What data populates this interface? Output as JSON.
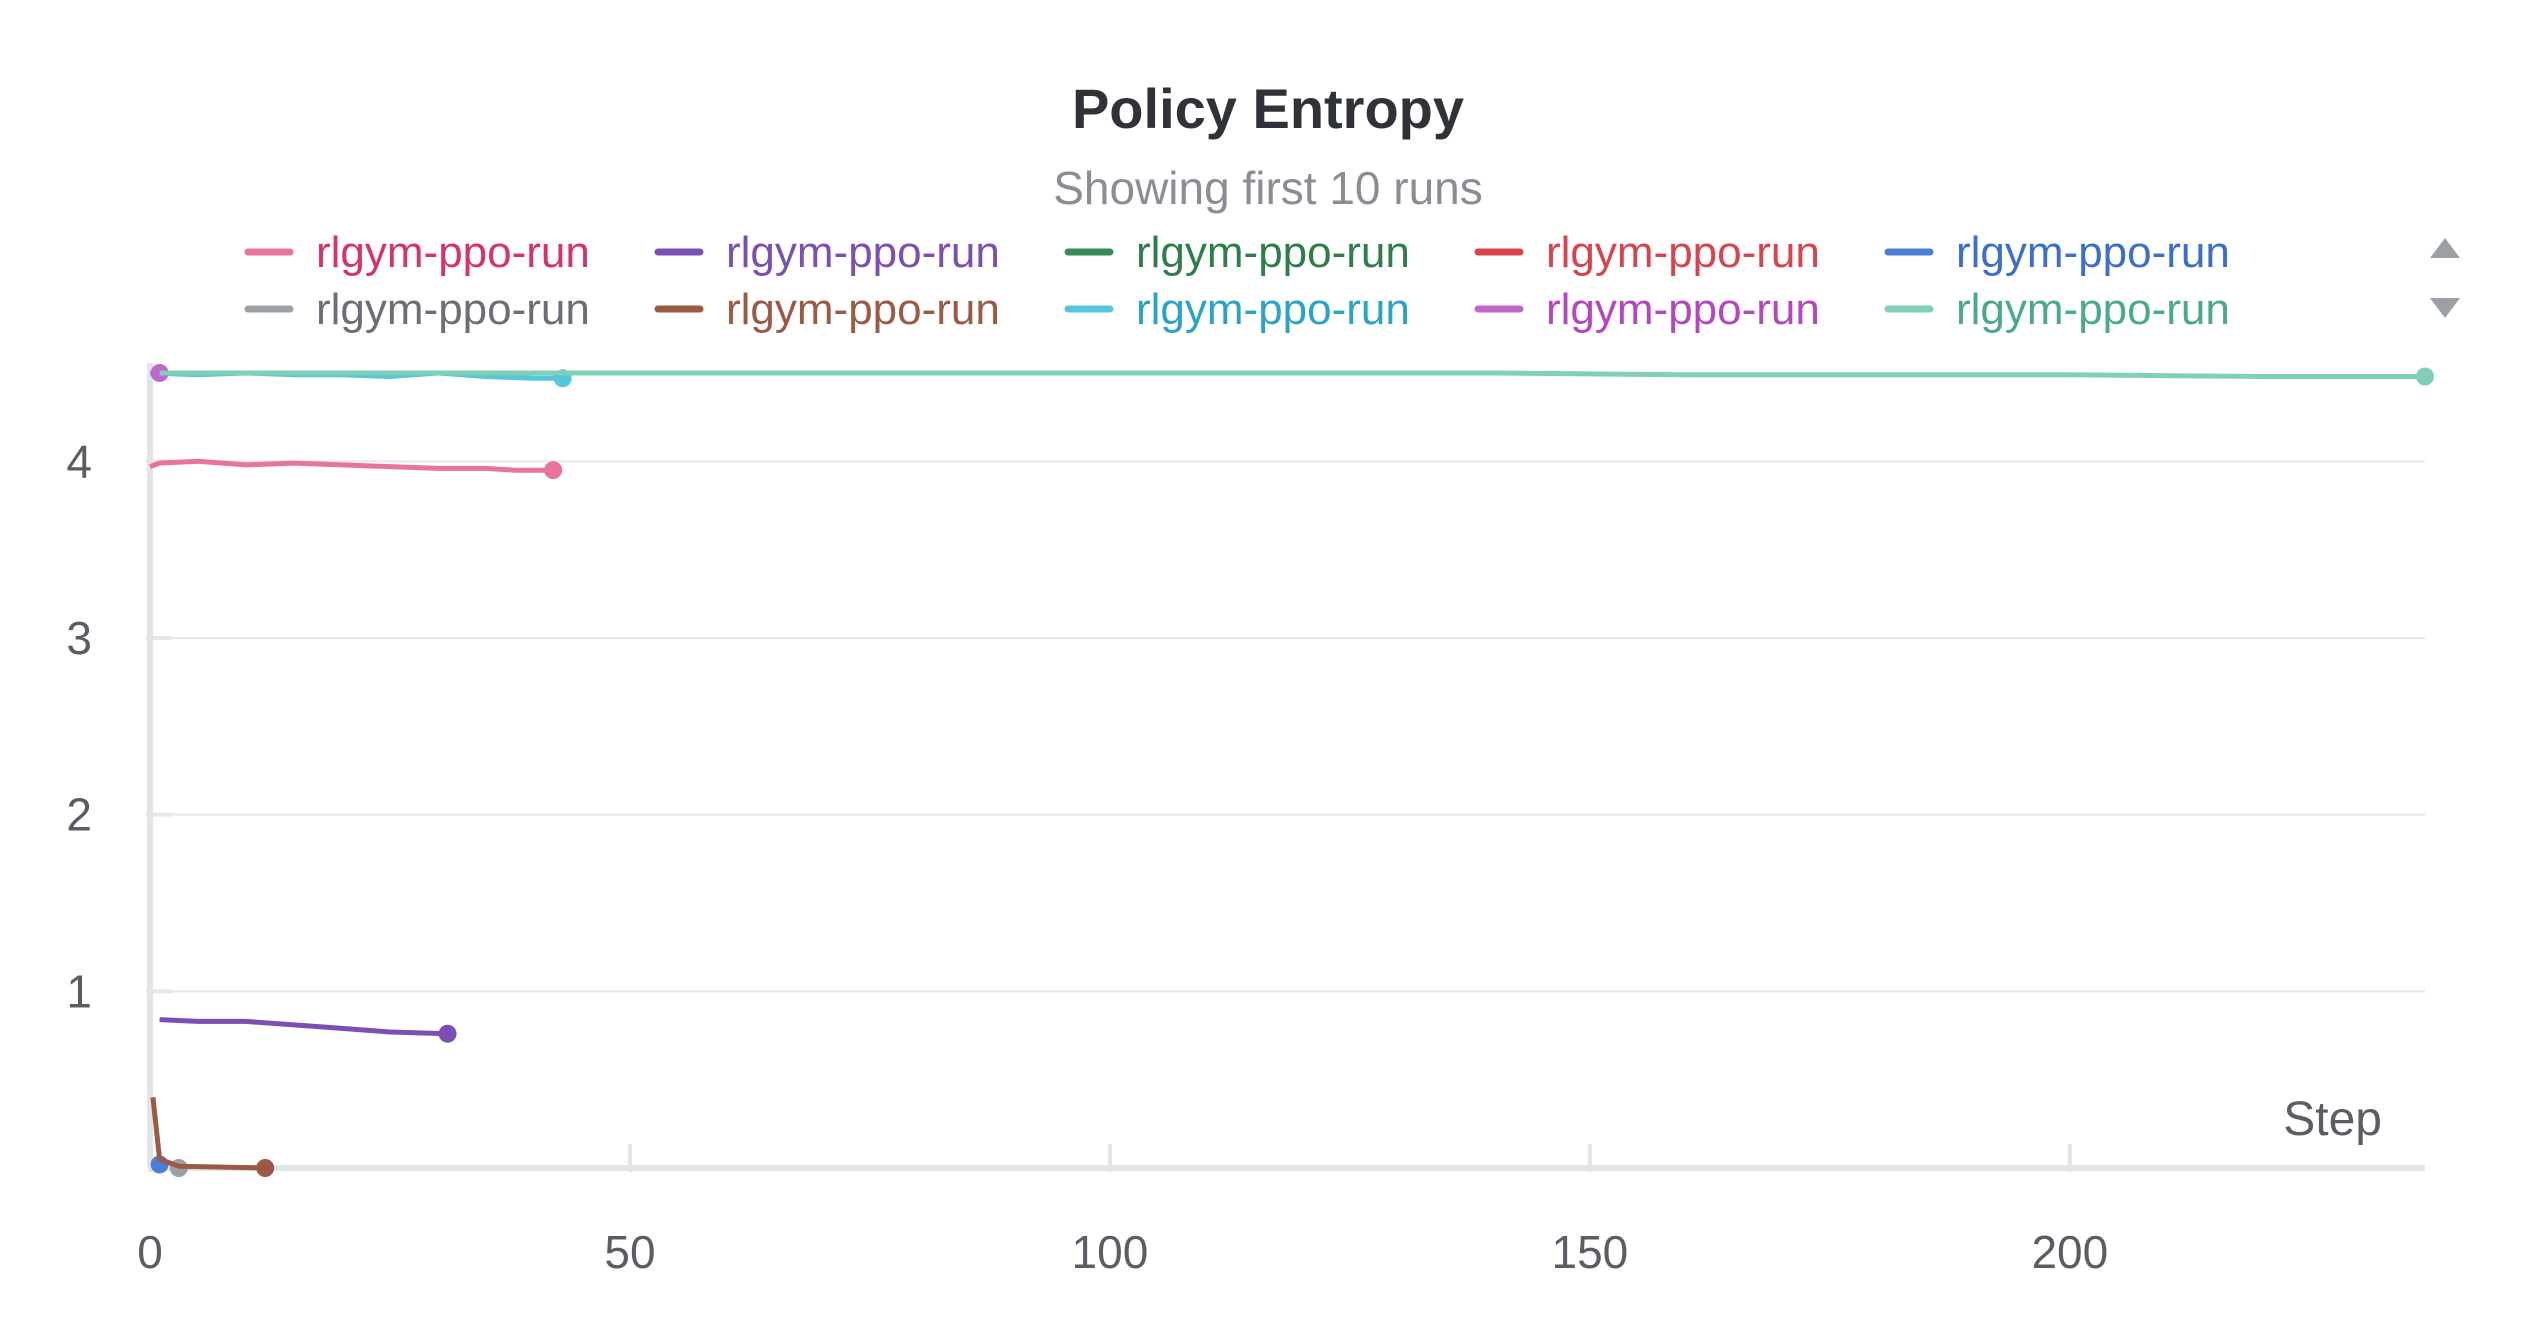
{
  "chart_data": {
    "type": "line",
    "title": "Policy Entropy",
    "subtitle": "Showing first 10 runs",
    "xlabel": "Step",
    "ylabel": "",
    "xlim": [
      0,
      237
    ],
    "ylim": [
      0,
      4.5
    ],
    "x_ticks": [
      0,
      50,
      100,
      150,
      200
    ],
    "y_ticks": [
      1,
      2,
      3,
      4
    ],
    "grid": true,
    "legend_placement": "top",
    "series": [
      {
        "name": "rlgym-ppo-run",
        "color": "#e8739c",
        "label_color": "#d6336c",
        "x": [
          0,
          1,
          5,
          10,
          15,
          20,
          25,
          30,
          35,
          38,
          42
        ],
        "y": [
          3.97,
          3.99,
          4.0,
          3.98,
          3.99,
          3.98,
          3.97,
          3.96,
          3.96,
          3.95,
          3.95
        ]
      },
      {
        "name": "rlgym-ppo-run",
        "color": "#7c4fb3",
        "label_color": "#7c4fb3",
        "x": [
          1,
          5,
          10,
          15,
          20,
          25,
          31
        ],
        "y": [
          0.84,
          0.83,
          0.83,
          0.81,
          0.79,
          0.77,
          0.76
        ]
      },
      {
        "name": "rlgym-ppo-run",
        "color": "#3a8a55",
        "label_color": "#2e7d4a",
        "x": [],
        "y": []
      },
      {
        "name": "rlgym-ppo-run",
        "color": "#d9434d",
        "label_color": "#d9434d",
        "x": [],
        "y": []
      },
      {
        "name": "rlgym-ppo-run",
        "color": "#4a7fd6",
        "label_color": "#3b6fc9",
        "x": [
          1
        ],
        "y": [
          0.02
        ]
      },
      {
        "name": "rlgym-ppo-run",
        "color": "#9aa0a6",
        "label_color": "#6b6f75",
        "x": [
          3
        ],
        "y": [
          0.0
        ]
      },
      {
        "name": "rlgym-ppo-run",
        "color": "#9a5a44",
        "label_color": "#9a5a44",
        "x": [
          0.3,
          1,
          3,
          12
        ],
        "y": [
          0.4,
          0.05,
          0.01,
          0.0
        ]
      },
      {
        "name": "rlgym-ppo-run",
        "color": "#56c6dc",
        "label_color": "#2aa3c4",
        "x": [
          0,
          5,
          10,
          15,
          20,
          25,
          30,
          35,
          40,
          43
        ],
        "y": [
          4.5,
          4.49,
          4.5,
          4.49,
          4.49,
          4.48,
          4.5,
          4.48,
          4.47,
          4.47
        ]
      },
      {
        "name": "rlgym-ppo-run",
        "color": "#c266cc",
        "label_color": "#b447c0",
        "x": [
          1
        ],
        "y": [
          4.5
        ]
      },
      {
        "name": "rlgym-ppo-run",
        "color": "#7fcfb9",
        "label_color": "#4aa88f",
        "x": [
          1,
          20,
          40,
          60,
          80,
          100,
          120,
          140,
          160,
          180,
          200,
          220,
          237
        ],
        "y": [
          4.5,
          4.5,
          4.5,
          4.5,
          4.5,
          4.5,
          4.5,
          4.5,
          4.49,
          4.49,
          4.49,
          4.48,
          4.48
        ]
      }
    ]
  },
  "legend_nav": {
    "up_icon": "caret-up-icon",
    "down_icon": "caret-down-icon"
  }
}
